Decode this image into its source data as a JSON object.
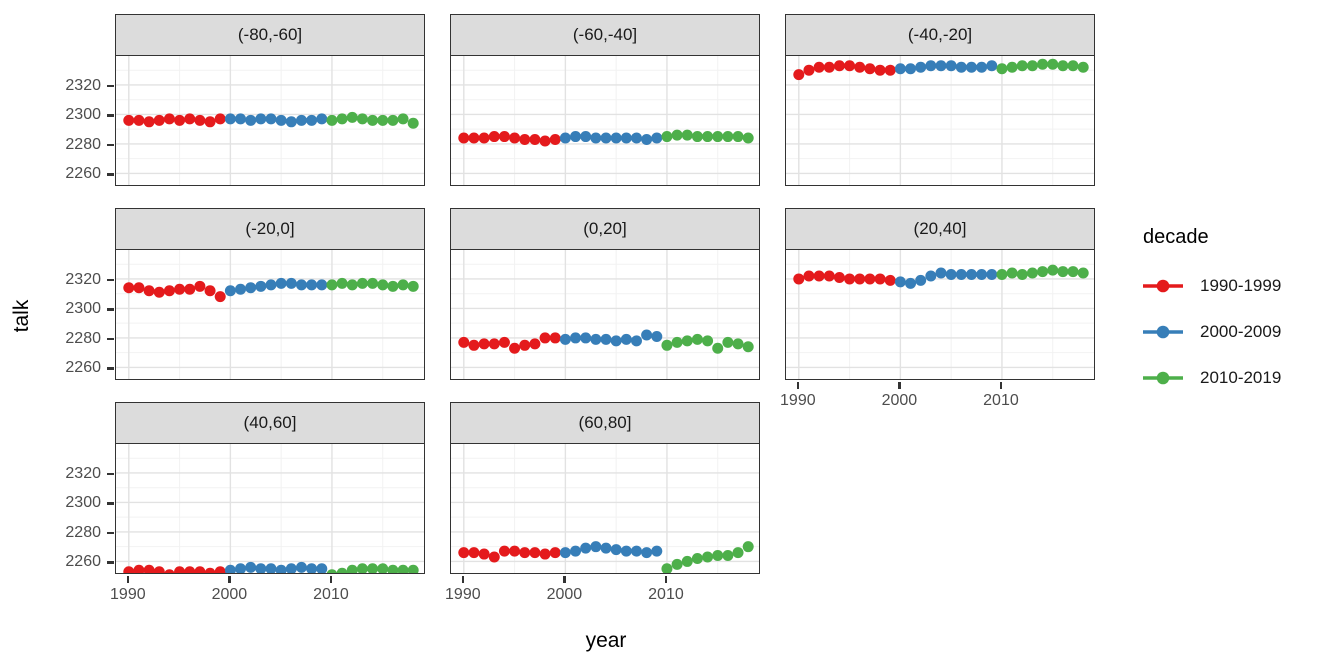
{
  "legend": {
    "title": "decade",
    "entries": [
      {
        "label": "1990-1999",
        "color": "#E41A1C"
      },
      {
        "label": "2000-2009",
        "color": "#377EB8"
      },
      {
        "label": "2010-2019",
        "color": "#4DAF4A"
      }
    ]
  },
  "style": {
    "background": "#FFFFFF",
    "strip_fill": "#DCDCDC",
    "panel_border": "#333333",
    "grid_major": "#E2E2E2",
    "grid_minor": "#F2F2F2",
    "tick_label_color": "#4D4D4D",
    "axis_title_color": "#000000"
  },
  "chart_data": {
    "type": "scatter",
    "title": "",
    "xlabel": "year",
    "ylabel": "talk",
    "legend_title": "decade",
    "legend_position": "right",
    "grid": true,
    "x_ticks": [
      1990,
      2000,
      2010
    ],
    "y_ticks": [
      2260,
      2280,
      2300,
      2320
    ],
    "xlim": [
      1988.74,
      2019.26
    ],
    "ylim": [
      2250.8,
      2340.3
    ],
    "facets": [
      {
        "label": "(-80,-60]",
        "series": [
          {
            "name": "1990-1999",
            "start_year": 1990,
            "values": [
              2296,
              2296,
              2295,
              2296,
              2297,
              2296,
              2297,
              2296,
              2295,
              2297
            ]
          },
          {
            "name": "2000-2009",
            "start_year": 2000,
            "values": [
              2297,
              2297,
              2296,
              2297,
              2297,
              2296,
              2295,
              2296,
              2296,
              2297
            ]
          },
          {
            "name": "2010-2019",
            "start_year": 2010,
            "values": [
              2296,
              2297,
              2298,
              2297,
              2296,
              2296,
              2296,
              2297,
              2294
            ]
          }
        ]
      },
      {
        "label": "(-60,-40]",
        "series": [
          {
            "name": "1990-1999",
            "start_year": 1990,
            "values": [
              2284,
              2284,
              2284,
              2285,
              2285,
              2284,
              2283,
              2283,
              2282,
              2283
            ]
          },
          {
            "name": "2000-2009",
            "start_year": 2000,
            "values": [
              2284,
              2285,
              2285,
              2284,
              2284,
              2284,
              2284,
              2284,
              2283,
              2284
            ]
          },
          {
            "name": "2010-2019",
            "start_year": 2010,
            "values": [
              2285,
              2286,
              2286,
              2285,
              2285,
              2285,
              2285,
              2285,
              2284
            ]
          }
        ]
      },
      {
        "label": "(-40,-20]",
        "series": [
          {
            "name": "1990-1999",
            "start_year": 1990,
            "values": [
              2327,
              2330,
              2332,
              2332,
              2333,
              2333,
              2332,
              2331,
              2330,
              2330
            ]
          },
          {
            "name": "2000-2009",
            "start_year": 2000,
            "values": [
              2331,
              2331,
              2332,
              2333,
              2333,
              2333,
              2332,
              2332,
              2332,
              2333
            ]
          },
          {
            "name": "2010-2019",
            "start_year": 2010,
            "values": [
              2331,
              2332,
              2333,
              2333,
              2334,
              2334,
              2333,
              2333,
              2332
            ]
          }
        ]
      },
      {
        "label": "(-20,0]",
        "series": [
          {
            "name": "1990-1999",
            "start_year": 1990,
            "values": [
              2314,
              2314,
              2312,
              2311,
              2312,
              2313,
              2313,
              2315,
              2312,
              2308
            ]
          },
          {
            "name": "2000-2009",
            "start_year": 2000,
            "values": [
              2312,
              2313,
              2314,
              2315,
              2316,
              2317,
              2317,
              2316,
              2316,
              2316
            ]
          },
          {
            "name": "2010-2019",
            "start_year": 2010,
            "values": [
              2316,
              2317,
              2316,
              2317,
              2317,
              2316,
              2315,
              2316,
              2315
            ]
          }
        ]
      },
      {
        "label": "(0,20]",
        "series": [
          {
            "name": "1990-1999",
            "start_year": 1990,
            "values": [
              2277,
              2275,
              2276,
              2276,
              2277,
              2273,
              2275,
              2276,
              2280,
              2280
            ]
          },
          {
            "name": "2000-2009",
            "start_year": 2000,
            "values": [
              2279,
              2280,
              2280,
              2279,
              2279,
              2278,
              2279,
              2278,
              2282,
              2281
            ]
          },
          {
            "name": "2010-2019",
            "start_year": 2010,
            "values": [
              2275,
              2277,
              2278,
              2279,
              2278,
              2273,
              2277,
              2276,
              2274
            ]
          }
        ]
      },
      {
        "label": "(20,40]",
        "series": [
          {
            "name": "1990-1999",
            "start_year": 1990,
            "values": [
              2320,
              2322,
              2322,
              2322,
              2321,
              2320,
              2320,
              2320,
              2320,
              2319
            ]
          },
          {
            "name": "2000-2009",
            "start_year": 2000,
            "values": [
              2318,
              2317,
              2319,
              2322,
              2324,
              2323,
              2323,
              2323,
              2323,
              2323
            ]
          },
          {
            "name": "2010-2019",
            "start_year": 2010,
            "values": [
              2323,
              2324,
              2323,
              2324,
              2325,
              2326,
              2325,
              2325,
              2324
            ]
          }
        ]
      },
      {
        "label": "(40,60]",
        "series": [
          {
            "name": "1990-1999",
            "start_year": 1990,
            "values": [
              2253,
              2254,
              2254,
              2253,
              2251,
              2253,
              2253,
              2253,
              2252,
              2253
            ]
          },
          {
            "name": "2000-2009",
            "start_year": 2000,
            "values": [
              2254,
              2255,
              2256,
              2255,
              2255,
              2254,
              2255,
              2256,
              2255,
              2255
            ]
          },
          {
            "name": "2010-2019",
            "start_year": 2010,
            "values": [
              2251,
              2252,
              2254,
              2255,
              2255,
              2255,
              2254,
              2254,
              2254
            ]
          }
        ]
      },
      {
        "label": "(60,80]",
        "series": [
          {
            "name": "1990-1999",
            "start_year": 1990,
            "values": [
              2266,
              2266,
              2265,
              2263,
              2267,
              2267,
              2266,
              2266,
              2265,
              2266
            ]
          },
          {
            "name": "2000-2009",
            "start_year": 2000,
            "values": [
              2266,
              2267,
              2269,
              2270,
              2269,
              2268,
              2267,
              2267,
              2266,
              2267
            ]
          },
          {
            "name": "2010-2019",
            "start_year": 2010,
            "values": [
              2255,
              2258,
              2260,
              2262,
              2263,
              2264,
              2264,
              2266,
              2270
            ]
          }
        ]
      }
    ]
  }
}
